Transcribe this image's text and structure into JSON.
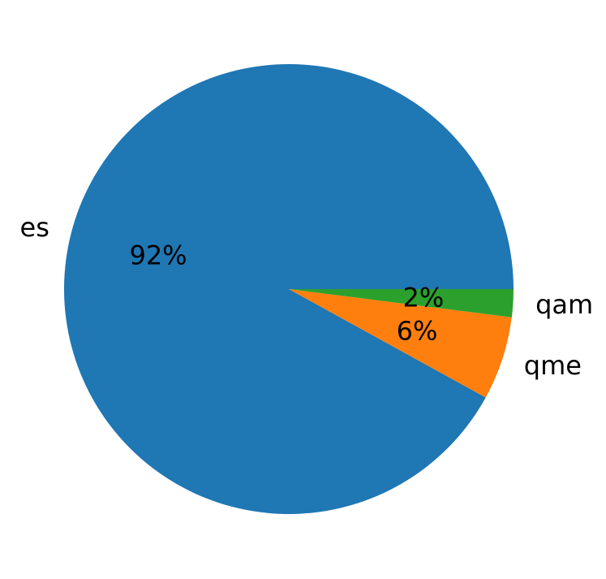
{
  "chart_data": {
    "type": "pie",
    "title": "",
    "slices": [
      {
        "label": "es",
        "value": 92,
        "pct_label": "92%",
        "color": "#1f77b4"
      },
      {
        "label": "qme",
        "value": 6,
        "pct_label": "6%",
        "color": "#ff7f0e"
      },
      {
        "label": "qam",
        "value": 2,
        "pct_label": "2%",
        "color": "#2ca02c"
      }
    ],
    "start_angle_deg": 0,
    "direction": "counterclockwise",
    "legend": "none"
  }
}
